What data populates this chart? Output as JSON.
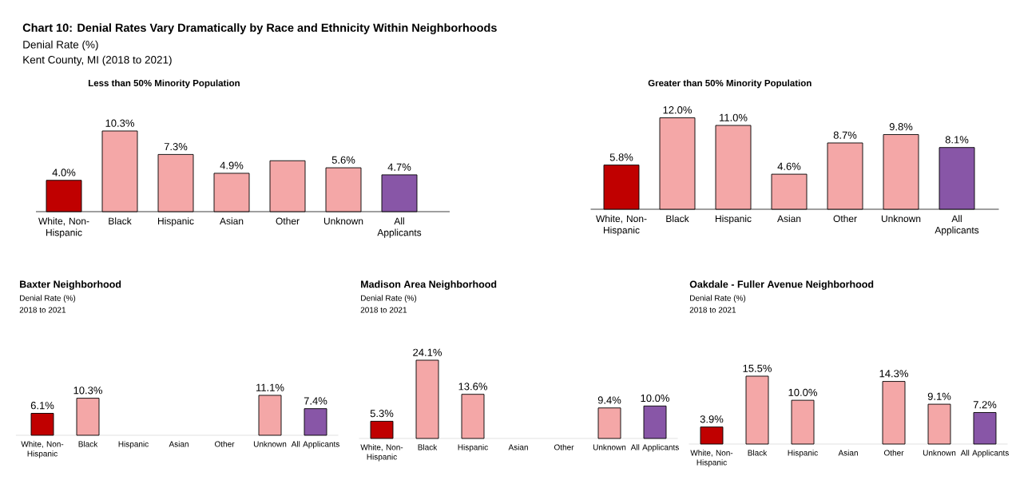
{
  "chart_data": [
    {
      "type": "other",
      "title": "Chart 10: Denial Rates Vary Dramatically by Race and Ethnicity Within Neighborhoods",
      "subtitle": "Denial Rate (%)",
      "annotations": [
        "Kent County, MI (2018 to 2021)"
      ]
    },
    {
      "type": "bar",
      "title": "Less than 50% Minority Population",
      "categories": [
        "White, Non-Hispanic",
        "Black",
        "Hispanic",
        "Asian",
        "Other",
        "Unknown",
        "All Applicants"
      ],
      "values": [
        4.0,
        10.3,
        7.3,
        4.9,
        6.5,
        5.6,
        4.7
      ],
      "colors": [
        "#c00000",
        "#f4a7a7",
        "#f4a7a7",
        "#f4a7a7",
        "#f4a7a7",
        "#f4a7a7",
        "#8856a7"
      ],
      "value_labels": [
        "4.0%",
        "10.3%",
        "7.3%",
        "4.9%",
        null,
        "5.6%",
        "4.7%"
      ]
    },
    {
      "type": "bar",
      "title": "Greater than 50% Minority Population",
      "categories": [
        "White, Non-Hispanic",
        "Black",
        "Hispanic",
        "Asian",
        "Other",
        "Unknown",
        "All Applicants"
      ],
      "values": [
        5.8,
        12.0,
        11.0,
        4.6,
        8.7,
        9.8,
        8.1
      ],
      "colors": [
        "#c00000",
        "#f4a7a7",
        "#f4a7a7",
        "#f4a7a7",
        "#f4a7a7",
        "#f4a7a7",
        "#8856a7"
      ],
      "value_labels": [
        "5.8%",
        "12.0%",
        "11.0%",
        "4.6%",
        "8.7%",
        "9.8%",
        "8.1%"
      ]
    },
    {
      "type": "bar",
      "title": "Baxter Neighborhood",
      "subtitle": "Denial Rate (%)",
      "annotations": [
        "2018 to 2021"
      ],
      "categories": [
        "White, Non-Hispanic",
        "Black",
        "Hispanic",
        "Asian",
        "Other",
        "Unknown",
        "All Applicants"
      ],
      "values": [
        6.1,
        10.3,
        null,
        null,
        null,
        11.1,
        7.4
      ],
      "colors": [
        "#c00000",
        "#f4a7a7",
        null,
        null,
        null,
        "#f4a7a7",
        "#8856a7"
      ],
      "value_labels": [
        "6.1%",
        "10.3%",
        null,
        null,
        null,
        "11.1%",
        "7.4%"
      ]
    },
    {
      "type": "bar",
      "title": "Madison Area Neighborhood",
      "subtitle": "Denial Rate (%)",
      "annotations": [
        "2018 to 2021"
      ],
      "categories": [
        "White, Non-Hispanic",
        "Black",
        "Hispanic",
        "Asian",
        "Other",
        "Unknown",
        "All Applicants"
      ],
      "values": [
        5.3,
        24.1,
        13.6,
        null,
        null,
        9.4,
        10.0
      ],
      "colors": [
        "#c00000",
        "#f4a7a7",
        "#f4a7a7",
        null,
        null,
        "#f4a7a7",
        "#8856a7"
      ],
      "value_labels": [
        "5.3%",
        "24.1%",
        "13.6%",
        null,
        null,
        "9.4%",
        "10.0%"
      ]
    },
    {
      "type": "bar",
      "title": "Oakdale - Fuller Avenue Neighborhood",
      "subtitle": "Denial Rate (%)",
      "annotations": [
        "2018 to 2021"
      ],
      "categories": [
        "White, Non-Hispanic",
        "Black",
        "Hispanic",
        "Asian",
        "Other",
        "Unknown",
        "All Applicants"
      ],
      "values": [
        3.9,
        15.5,
        10.0,
        null,
        14.3,
        9.1,
        7.2
      ],
      "colors": [
        "#c00000",
        "#f4a7a7",
        "#f4a7a7",
        null,
        "#f4a7a7",
        "#f4a7a7",
        "#8856a7"
      ],
      "value_labels": [
        "3.9%",
        "15.5%",
        "10.0%",
        null,
        "14.3%",
        "9.1%",
        "7.2%"
      ]
    }
  ]
}
